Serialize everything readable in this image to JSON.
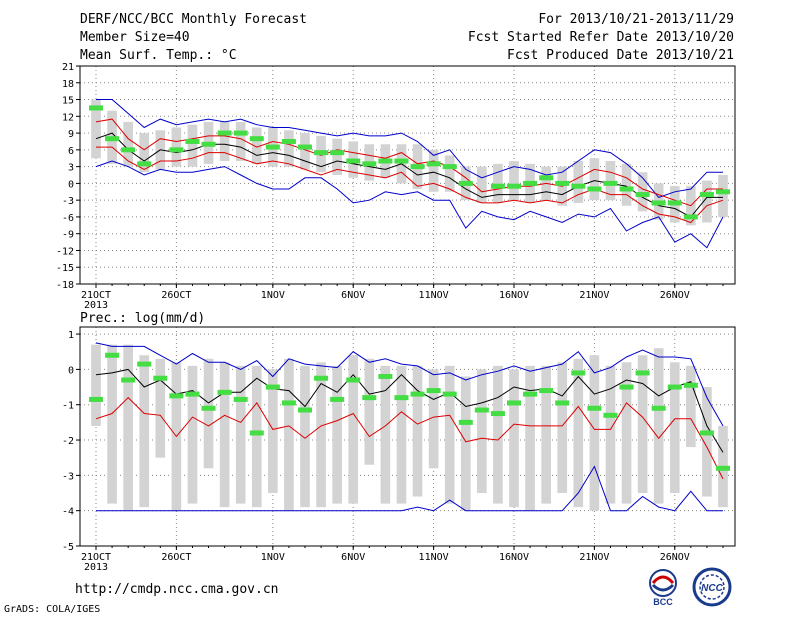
{
  "header": {
    "title": "DERF/NCC/BCC Monthly Forecast",
    "member_size": "Member Size=40",
    "variable": "Mean Surf. Temp.: °C",
    "period": "For 2013/10/21-2013/11/29",
    "started": "Fcst Started Refer Date 2013/10/20",
    "produced": "Fcst Produced Date 2013/10/21"
  },
  "footer": {
    "url": "http://cmdp.ncc.cma.gov.cn",
    "credit": "GrADS: COLA/IGES",
    "logo1_text": "BCC",
    "logo2_text": "NCC"
  },
  "colors": {
    "max": "#0000cc",
    "min": "#0000cc",
    "upper": "#dd0000",
    "lower": "#dd0000",
    "mean": "#000000",
    "obs": "#44dd44",
    "box": "#d3d3d3"
  },
  "chart_data": [
    {
      "type": "box-line",
      "title": "",
      "xlabel": "",
      "ylabel": "Mean Surf. Temp.: °C",
      "ylim": [
        -18,
        21
      ],
      "yticks": [
        21,
        18,
        15,
        12,
        9,
        6,
        3,
        0,
        -3,
        -6,
        -9,
        -12,
        -15,
        -18
      ],
      "xticks": [
        {
          "day": 0,
          "label": "21OCT",
          "sublabel": "2013"
        },
        {
          "day": 5,
          "label": "26OCT"
        },
        {
          "day": 11,
          "label": "1NOV"
        },
        {
          "day": 16,
          "label": "6NOV"
        },
        {
          "day": 21,
          "label": "11NOV"
        },
        {
          "day": 26,
          "label": "16NOV"
        },
        {
          "day": 31,
          "label": "21NOV"
        },
        {
          "day": 36,
          "label": "26NOV"
        }
      ],
      "days": 40,
      "grid": true,
      "box_low": [
        4.5,
        3.5,
        3,
        2,
        2.5,
        3,
        3,
        3.5,
        4,
        4,
        3.5,
        3,
        3,
        2.5,
        2,
        1.5,
        1,
        0.5,
        1,
        0,
        -1,
        -1.5,
        -1.5,
        -3,
        -3.5,
        -3.5,
        -3,
        -3.5,
        -3,
        -4,
        -3.5,
        -3,
        -3,
        -4,
        -5,
        -6.5,
        -7,
        -7.5,
        -7,
        -6
      ],
      "box_high": [
        15,
        13,
        11,
        9,
        9.5,
        10,
        10.5,
        11,
        11,
        11,
        10,
        10,
        9.5,
        9,
        8.5,
        8,
        7.5,
        7,
        7,
        7,
        7,
        6,
        5,
        3,
        3,
        3.5,
        4,
        3.5,
        3,
        3,
        4,
        4.5,
        4,
        3.5,
        2,
        0,
        -0.5,
        -0.5,
        0.5,
        1.5
      ],
      "series": [
        {
          "name": "max",
          "role": "max",
          "values": [
            15,
            15,
            12.5,
            10,
            11.5,
            10.5,
            11,
            11.5,
            11,
            11.5,
            10.5,
            10,
            10,
            9.5,
            9,
            8.5,
            9,
            8.5,
            8.5,
            9,
            7.5,
            5,
            6,
            2.5,
            1,
            2,
            3,
            2.5,
            1.5,
            2,
            4,
            6,
            5.5,
            3.5,
            1,
            -2.5,
            -1.5,
            -1,
            2,
            2
          ]
        },
        {
          "name": "upper",
          "role": "upper",
          "values": [
            11,
            11.5,
            8,
            6,
            8,
            7.5,
            8,
            8.5,
            8.5,
            8,
            6.5,
            7.5,
            7,
            6,
            5,
            6,
            5.5,
            5,
            4.5,
            5.5,
            3.5,
            4,
            3,
            1,
            -1.5,
            -1,
            -0.5,
            -0.5,
            0,
            -0.5,
            1,
            2.5,
            2,
            1,
            -1,
            -2,
            -3,
            -4,
            -1,
            -1
          ]
        },
        {
          "name": "mean",
          "role": "mean",
          "values": [
            8,
            9,
            6,
            4,
            6,
            5.5,
            6,
            7,
            7,
            6.5,
            5,
            5.5,
            5,
            4,
            3,
            4,
            3.5,
            3,
            2.5,
            3.5,
            1.5,
            2,
            1,
            -1,
            -2.5,
            -2,
            -2,
            -2,
            -1.5,
            -2,
            -0.5,
            0.5,
            0,
            -0.5,
            -2.5,
            -4,
            -4.5,
            -6,
            -2.5,
            -2.5
          ]
        },
        {
          "name": "lower",
          "role": "lower",
          "values": [
            6.5,
            6.5,
            4,
            2.5,
            4,
            4,
            4.5,
            5.5,
            5.5,
            4.5,
            3.5,
            4,
            3.5,
            2.5,
            1.5,
            2.5,
            2,
            1.5,
            1,
            2,
            -0.5,
            0,
            -1,
            -2.5,
            -3.5,
            -3.5,
            -3,
            -3.5,
            -3,
            -3.5,
            -2,
            -1,
            -2,
            -2,
            -4,
            -5.5,
            -6,
            -7,
            -4,
            -3
          ]
        },
        {
          "name": "min",
          "role": "min",
          "values": [
            3,
            4,
            3,
            1.5,
            2.5,
            2,
            2,
            2.5,
            3,
            1.5,
            0,
            -1,
            -1,
            1,
            1,
            -1,
            -3.5,
            -3,
            -1.5,
            -2,
            -1.5,
            -3,
            -3,
            -8,
            -5,
            -6,
            -6.5,
            -5,
            -6,
            -7,
            -5.5,
            -6,
            -4.5,
            -8.5,
            -7,
            -6,
            -10.5,
            -9,
            -11.5,
            -6
          ]
        }
      ],
      "obs": [
        13.5,
        8,
        6,
        3.5,
        null,
        6,
        7.5,
        7,
        9,
        9,
        8,
        6.5,
        7.5,
        6.5,
        5.5,
        5.5,
        4,
        3.5,
        4,
        4,
        3,
        3.5,
        3,
        0,
        null,
        -0.5,
        -0.5,
        0,
        1,
        0,
        -0.5,
        -1,
        0,
        -1,
        -2,
        -3.5,
        -3.5,
        -6,
        -2,
        -1.5
      ]
    },
    {
      "type": "box-line",
      "title": "",
      "xlabel": "",
      "ylabel": "Prec.: log(mm/d)",
      "ylim": [
        -5,
        1.2
      ],
      "yticks": [
        1,
        0,
        -1,
        -2,
        -3,
        -4,
        -5
      ],
      "xticks": [
        {
          "day": 0,
          "label": "21OCT",
          "sublabel": "2013"
        },
        {
          "day": 5,
          "label": "26OCT"
        },
        {
          "day": 11,
          "label": "1NOV"
        },
        {
          "day": 16,
          "label": "6NOV"
        },
        {
          "day": 21,
          "label": "11NOV"
        },
        {
          "day": 26,
          "label": "16NOV"
        },
        {
          "day": 31,
          "label": "21NOV"
        },
        {
          "day": 36,
          "label": "26NOV"
        }
      ],
      "days": 40,
      "grid": true,
      "box_low": [
        -1.6,
        -3.8,
        -4,
        -3.9,
        -2.5,
        -4,
        -3.8,
        -2.8,
        -3.9,
        -3.8,
        -3.9,
        -3.5,
        -4,
        -3.9,
        -3.9,
        -3.8,
        -3.8,
        -2.7,
        -3.8,
        -3.8,
        -3.6,
        -2.8,
        -3.8,
        -4,
        -3.5,
        -3.8,
        -3.9,
        -4,
        -3.8,
        -3.5,
        -3.9,
        -4,
        -3.8,
        -3.8,
        -3.5,
        -3.8,
        -3.5,
        -2.2,
        -3.6,
        -3.9
      ],
      "box_high": [
        0.7,
        0.7,
        0.7,
        0.4,
        0.3,
        0.2,
        0.1,
        0.3,
        0.2,
        0.1,
        0.1,
        0,
        0.3,
        0.1,
        0.2,
        0.1,
        0.4,
        0.3,
        0.1,
        0.1,
        0.1,
        0,
        0.1,
        -0.2,
        0,
        0.1,
        0,
        0.1,
        0.1,
        0.2,
        0.3,
        0.4,
        0.1,
        0.2,
        0.4,
        0.6,
        0.2,
        0.1,
        -0.5,
        -1.6
      ],
      "series": [
        {
          "name": "max",
          "role": "max",
          "values": [
            0.75,
            0.65,
            0.65,
            0.65,
            0.4,
            0.15,
            0.45,
            0.2,
            0.2,
            0,
            0.25,
            -0.2,
            0.3,
            0.15,
            0.1,
            0.05,
            0.5,
            0.2,
            0.3,
            0.15,
            0.1,
            -0.15,
            -0.1,
            -0.3,
            -0.15,
            -0.05,
            0.1,
            -0.05,
            0.05,
            0.15,
            0.5,
            -0.1,
            0.05,
            0.35,
            0.55,
            0.35,
            0.35,
            0.3,
            -0.8,
            -1.6
          ]
        },
        {
          "name": "mean",
          "role": "mean",
          "values": [
            -0.15,
            -0.1,
            0,
            -0.5,
            -0.3,
            -0.7,
            -0.6,
            -0.95,
            -0.65,
            -0.65,
            -0.25,
            -0.55,
            -0.6,
            -1.05,
            -0.4,
            -0.65,
            -0.15,
            -0.7,
            -0.6,
            -0.15,
            -0.6,
            -0.85,
            -0.65,
            -1.05,
            -0.95,
            -0.8,
            -0.5,
            -0.6,
            -0.55,
            -0.75,
            -0.2,
            -0.7,
            -0.55,
            -0.3,
            -0.4,
            -0.75,
            -0.5,
            -0.35,
            -1.6,
            -2.35
          ]
        },
        {
          "name": "lower",
          "role": "lower",
          "values": [
            -1.4,
            -1.25,
            -0.8,
            -1.25,
            -1.3,
            -1.9,
            -1.35,
            -1.6,
            -1.3,
            -1.5,
            -0.95,
            -1.7,
            -1.6,
            -1.95,
            -1.6,
            -1.45,
            -1.25,
            -1.9,
            -1.6,
            -1.2,
            -1.55,
            -1.35,
            -1.3,
            -2.05,
            -1.95,
            -2,
            -1.55,
            -1.6,
            -1.6,
            -1.6,
            -1.05,
            -1.7,
            -1.7,
            -0.95,
            -1.35,
            -1.95,
            -1.4,
            -1.4,
            -2.2,
            -3.1
          ]
        },
        {
          "name": "min",
          "role": "min",
          "values": [
            -4,
            -4,
            -4,
            -4,
            -4,
            -4,
            -4,
            -4,
            -4,
            -4,
            -4,
            -4,
            -4,
            -4,
            -4,
            -4,
            -4,
            -4,
            -4,
            -4,
            -3.9,
            -4,
            -3.7,
            -4,
            -4,
            -4,
            -4,
            -4,
            -4,
            -4,
            -3.5,
            -2.75,
            -4,
            -4,
            -3.6,
            -3.9,
            -4,
            -3.45,
            -4,
            -4
          ]
        }
      ],
      "obs": [
        -0.85,
        0.4,
        -0.3,
        0.15,
        -0.25,
        -0.75,
        -0.7,
        -1.1,
        -0.65,
        -0.85,
        -1.8,
        -0.5,
        -0.95,
        -1.15,
        -0.25,
        -0.85,
        -0.3,
        -0.8,
        -0.2,
        -0.8,
        -0.7,
        -0.6,
        -0.7,
        -1.5,
        -1.15,
        -1.25,
        -0.95,
        -0.7,
        -0.6,
        -0.95,
        -0.1,
        -1.1,
        -1.3,
        -0.5,
        -0.1,
        -1.1,
        -0.5,
        -0.45,
        -1.8,
        -2.8
      ]
    }
  ]
}
